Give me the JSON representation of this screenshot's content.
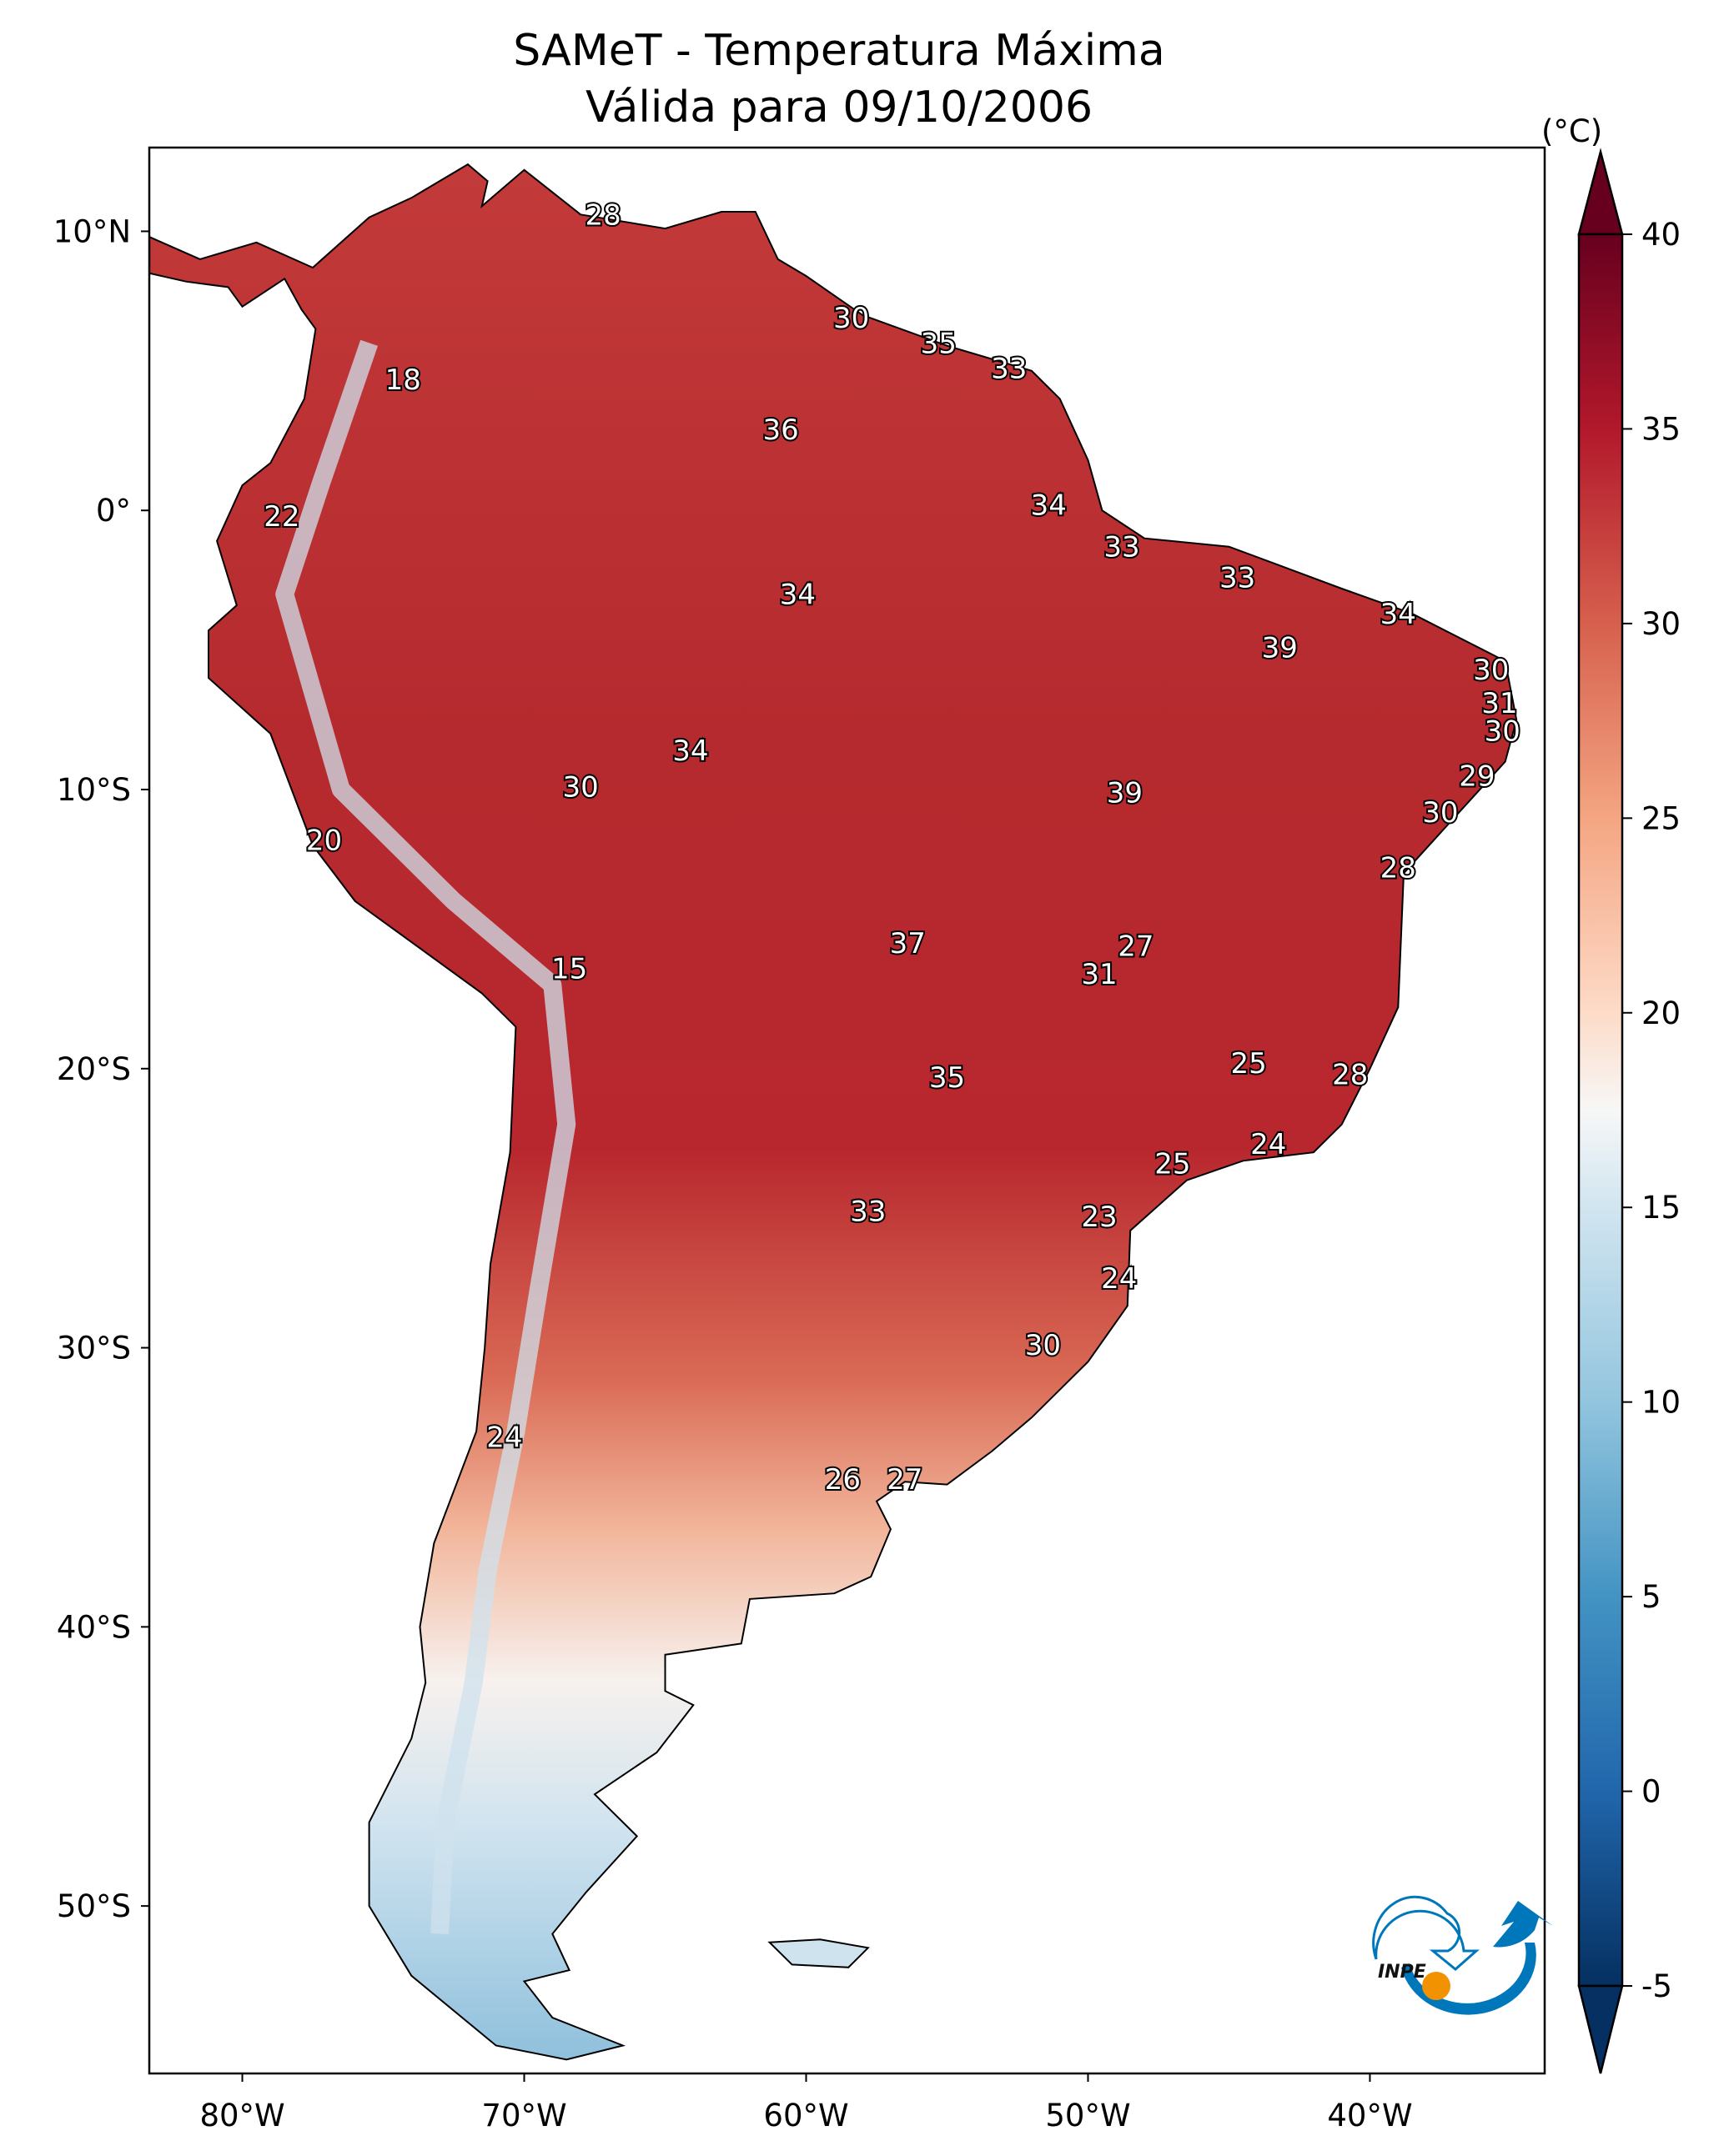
{
  "title": {
    "line1": "SAMeT - Temperatura Máxima",
    "line2": "Válida para 09/10/2006"
  },
  "map": {
    "lon_range": [
      -83.3,
      -33.8
    ],
    "lat_range": [
      -56,
      13
    ],
    "lon_ticks": [
      {
        "v": -80,
        "label": "80°W"
      },
      {
        "v": -70,
        "label": "70°W"
      },
      {
        "v": -60,
        "label": "60°W"
      },
      {
        "v": -50,
        "label": "50°W"
      },
      {
        "v": -40,
        "label": "40°W"
      }
    ],
    "lat_ticks": [
      {
        "v": 10,
        "label": "10°N"
      },
      {
        "v": 0,
        "label": "0°"
      },
      {
        "v": -10,
        "label": "10°S"
      },
      {
        "v": -20,
        "label": "20°S"
      },
      {
        "v": -30,
        "label": "30°S"
      },
      {
        "v": -40,
        "label": "40°S"
      },
      {
        "v": -50,
        "label": "50°S"
      }
    ],
    "station_labels": [
      {
        "t": "28",
        "lon": -67.2,
        "lat": 10.6
      },
      {
        "t": "30",
        "lon": -58.4,
        "lat": 6.9
      },
      {
        "t": "35",
        "lon": -55.3,
        "lat": 6.0
      },
      {
        "t": "33",
        "lon": -52.8,
        "lat": 5.1
      },
      {
        "t": "18",
        "lon": -74.3,
        "lat": 4.7
      },
      {
        "t": "36",
        "lon": -60.9,
        "lat": 2.9
      },
      {
        "t": "22",
        "lon": -78.6,
        "lat": -0.2
      },
      {
        "t": "34",
        "lon": -51.4,
        "lat": 0.2
      },
      {
        "t": "33",
        "lon": -48.8,
        "lat": -1.3
      },
      {
        "t": "33",
        "lon": -44.7,
        "lat": -2.4
      },
      {
        "t": "34",
        "lon": -60.3,
        "lat": -3.0
      },
      {
        "t": "34",
        "lon": -39.0,
        "lat": -3.7
      },
      {
        "t": "39",
        "lon": -43.2,
        "lat": -4.9
      },
      {
        "t": "30",
        "lon": -35.7,
        "lat": -5.7
      },
      {
        "t": "31",
        "lon": -35.4,
        "lat": -6.9
      },
      {
        "t": "30",
        "lon": -35.3,
        "lat": -7.9
      },
      {
        "t": "34",
        "lon": -64.1,
        "lat": -8.6
      },
      {
        "t": "29",
        "lon": -36.2,
        "lat": -9.5
      },
      {
        "t": "30",
        "lon": -68.0,
        "lat": -9.9
      },
      {
        "t": "39",
        "lon": -48.7,
        "lat": -10.1
      },
      {
        "t": "30",
        "lon": -37.5,
        "lat": -10.8
      },
      {
        "t": "20",
        "lon": -77.1,
        "lat": -11.8
      },
      {
        "t": "28",
        "lon": -39.0,
        "lat": -12.8
      },
      {
        "t": "37",
        "lon": -56.4,
        "lat": -15.5
      },
      {
        "t": "27",
        "lon": -48.3,
        "lat": -15.6
      },
      {
        "t": "15",
        "lon": -68.4,
        "lat": -16.4
      },
      {
        "t": "31",
        "lon": -49.6,
        "lat": -16.6
      },
      {
        "t": "25",
        "lon": -44.3,
        "lat": -19.8
      },
      {
        "t": "28",
        "lon": -40.7,
        "lat": -20.2
      },
      {
        "t": "35",
        "lon": -55.0,
        "lat": -20.3
      },
      {
        "t": "24",
        "lon": -43.6,
        "lat": -22.7
      },
      {
        "t": "25",
        "lon": -47.0,
        "lat": -23.4
      },
      {
        "t": "33",
        "lon": -57.8,
        "lat": -25.1
      },
      {
        "t": "23",
        "lon": -49.6,
        "lat": -25.3
      },
      {
        "t": "24",
        "lon": -48.9,
        "lat": -27.5
      },
      {
        "t": "30",
        "lon": -51.6,
        "lat": -29.9
      },
      {
        "t": "24",
        "lon": -70.7,
        "lat": -33.2
      },
      {
        "t": "26",
        "lon": -58.7,
        "lat": -34.7
      },
      {
        "t": "27",
        "lon": -56.5,
        "lat": -34.7
      }
    ]
  },
  "colorbar": {
    "unit_label": "(°C)",
    "min": -5,
    "max": 40,
    "ticks": [
      "40",
      "35",
      "30",
      "25",
      "20",
      "15",
      "10",
      "5",
      "0",
      "-5"
    ],
    "colors": {
      "low_ext": "#053061",
      "c0": "#2166ac",
      "c5": "#4393c3",
      "c10": "#92c5de",
      "c15": "#d1e5f0",
      "c17": "#f7f7f7",
      "c20": "#fddbc7",
      "c25": "#f4a582",
      "c30": "#d6604d",
      "c35": "#b2182b",
      "high_ext": "#67001f"
    }
  },
  "logo": {
    "text": "INPE",
    "blue": "#0077bb",
    "orange": "#f39200"
  }
}
